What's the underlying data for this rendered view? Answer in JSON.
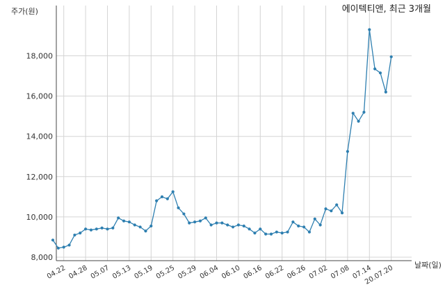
{
  "chart_data": {
    "type": "line",
    "title": "에이텍티앤, 최근 3개월",
    "ylabel": "주가(원)",
    "xlabel": "날짜(일)",
    "ylim": [
      8000,
      19500
    ],
    "yticks": [
      8000,
      10000,
      12000,
      14000,
      16000,
      18000
    ],
    "ytick_labels": [
      "8,000",
      "10,000",
      "12,000",
      "14,000",
      "16,000",
      "18,000"
    ],
    "xtick_labels": [
      "04.22",
      "04.28",
      "05.07",
      "05.13",
      "05.19",
      "05.25",
      "05.29",
      "06.04",
      "06.10",
      "06.16",
      "06.22",
      "06.26",
      "07.02",
      "07.08",
      "07.14",
      "20.07.20"
    ],
    "xtick_index": [
      2,
      6,
      10,
      14,
      18,
      22,
      26,
      30,
      34,
      38,
      42,
      46,
      50,
      54,
      58,
      62
    ],
    "grid": true,
    "colors": {
      "line": "#2e7fb0",
      "marker": "#2e7fb0"
    },
    "series": [
      {
        "values": [
          8850,
          8450,
          8500,
          8600,
          9100,
          9200,
          9400,
          9350,
          9400,
          9450,
          9400,
          9450,
          9950,
          9800,
          9750,
          9600,
          9500,
          9300,
          9550,
          10800,
          11000,
          10900,
          11250,
          10450,
          10150,
          9700,
          9750,
          9800,
          9950,
          9600,
          9700,
          9700,
          9600,
          9500,
          9600,
          9550,
          9400,
          9200,
          9400,
          9150,
          9150,
          9250,
          9200,
          9250,
          9750,
          9550,
          9500,
          9250,
          9900,
          9600,
          10400,
          10300,
          10600,
          10200,
          13250,
          15150,
          14750,
          15200,
          19300,
          17350,
          17150,
          16200,
          17950
        ]
      }
    ]
  }
}
